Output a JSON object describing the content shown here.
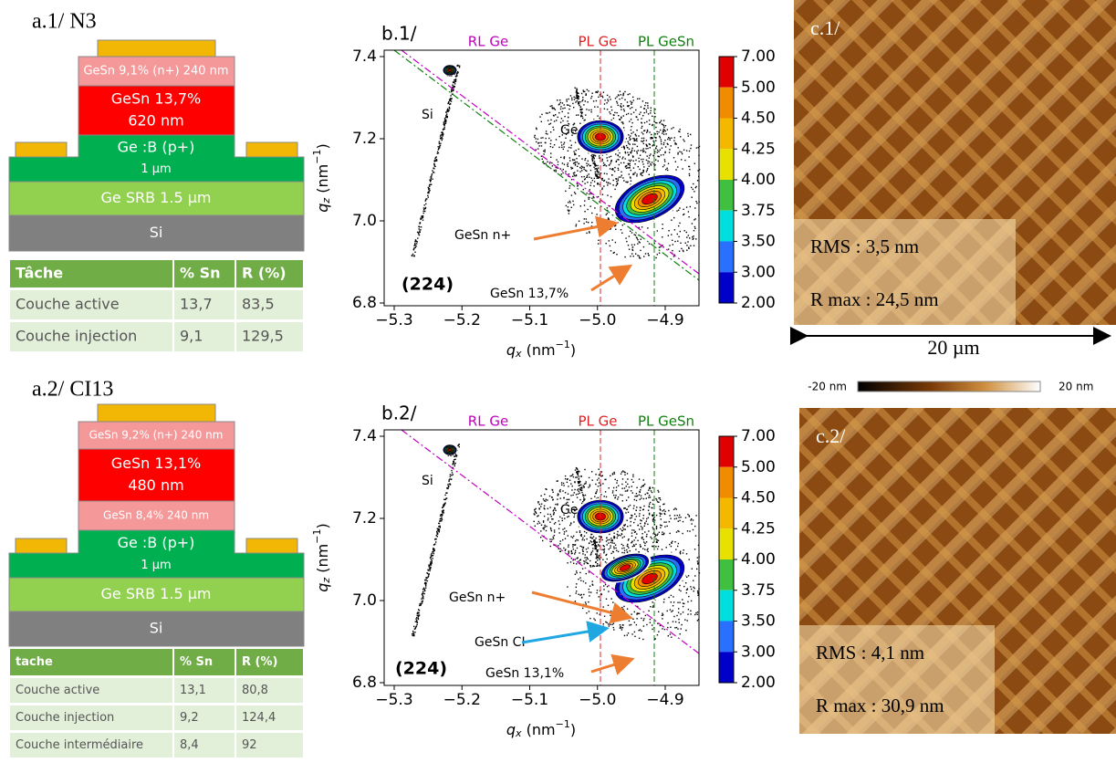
{
  "a1": {
    "label": "a.1/ N3",
    "layers": [
      [
        "GeSn 9,1% (n+) 240 nm"
      ],
      [
        "GeSn 13,7%",
        "620 nm"
      ],
      [
        "Ge :B (p+)",
        "1 µm"
      ],
      [
        "Ge SRB 1.5 µm"
      ],
      [
        "Si"
      ]
    ],
    "table": {
      "header": [
        "Tâche",
        "% Sn",
        "R (%)"
      ],
      "rows": [
        [
          "Couche active",
          "13,7",
          "83,5"
        ],
        [
          "Couche injection",
          "9,1",
          "129,5"
        ]
      ]
    }
  },
  "a2": {
    "label": "a.2/ CI13",
    "layers": [
      [
        "GeSn 9,2% (n+) 240 nm"
      ],
      [
        "GeSn 13,1%",
        "480 nm"
      ],
      [
        "GeSn 8,4% 240 nm"
      ],
      [
        "Ge :B (p+)",
        "1 µm"
      ],
      [
        "Ge SRB 1.5 µm"
      ],
      [
        "Si"
      ]
    ],
    "table": {
      "header": [
        "tache",
        "% Sn",
        "R (%)"
      ],
      "rows": [
        [
          "Couche active",
          "13,1",
          "80,8"
        ],
        [
          "Couche injection",
          "9,2",
          "124,4"
        ],
        [
          "Couche intermédiaire",
          "8,4",
          "92"
        ]
      ]
    }
  },
  "b1": {
    "label": "b.1/",
    "xticks": [
      "−5.3",
      "−5.2",
      "−5.1",
      "−5.0",
      "−4.9"
    ],
    "yticks": [
      "7.4",
      "7.2",
      "7.0",
      "6.8"
    ],
    "xlabel": {
      "q": "q",
      "sub": "x",
      "unit": " (nm",
      "sup": "−1",
      "close": ")"
    },
    "ylabel": {
      "q": "q",
      "sub": "z",
      "unit": " (nm",
      "sup": "−1",
      "close": ")"
    },
    "lines": [
      "RL Ge",
      "PL Ge",
      "PL GeSn"
    ],
    "annotations": {
      "si": "Si",
      "ge": "Ge",
      "n": "GeSn n+",
      "refl": "(224)",
      "active": "GeSn 13,7%"
    },
    "colorbar": [
      "7.00",
      "5.00",
      "4.50",
      "4.25",
      "4.00",
      "3.75",
      "3.50",
      "3.00",
      "2.00"
    ]
  },
  "b2": {
    "label": "b.2/",
    "xticks": [
      "−5.3",
      "−5.2",
      "−5.1",
      "−5.0",
      "−4.9"
    ],
    "yticks": [
      "7.4",
      "7.2",
      "7.0",
      "6.8"
    ],
    "xlabel": {
      "q": "q",
      "sub": "x",
      "unit": " (nm",
      "sup": "−1",
      "close": ")"
    },
    "ylabel": {
      "q": "q",
      "sub": "z",
      "unit": " (nm",
      "sup": "−1",
      "close": ")"
    },
    "lines": [
      "RL Ge",
      "PL Ge",
      "PL GeSn"
    ],
    "annotations": {
      "si": "Si",
      "ge": "Ge",
      "n": "GeSn n+",
      "ci": "GeSn CI",
      "refl": "(224)",
      "active": "GeSn 13,1%"
    },
    "colorbar": [
      "7.00",
      "5.00",
      "4.50",
      "4.25",
      "4.00",
      "3.75",
      "3.50",
      "3.00",
      "2.00"
    ]
  },
  "c1": {
    "label": "c.1/",
    "rms": "RMS : 3,5 nm",
    "rmax": "R max : 24,5 nm",
    "scale": "20 µm",
    "cmin": "-20 nm",
    "cmax": "20 nm"
  },
  "c2": {
    "label": "c.2/",
    "rms": "RMS : 4,1 nm",
    "rmax": "R max : 30,9 nm"
  }
}
